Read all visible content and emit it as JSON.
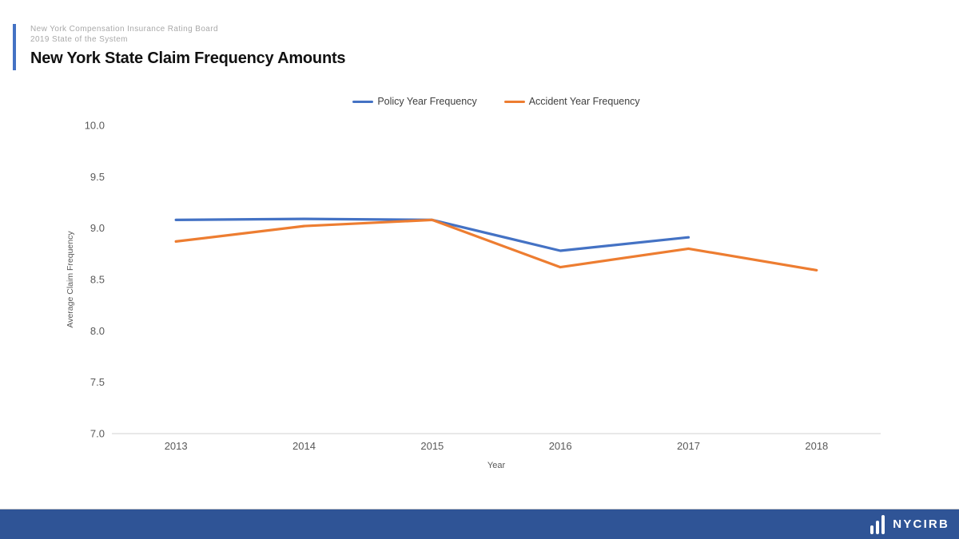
{
  "header": {
    "eyebrow_line1": "New York Compensation Insurance Rating Board",
    "eyebrow_line2": "2019 State of the System",
    "title": "New York State Claim Frequency Amounts",
    "accent_color": "#4472C4"
  },
  "chart_data": {
    "type": "line",
    "title": "New York State Claim Frequency Amounts",
    "xlabel": "Year",
    "ylabel": "Average Claim Frequency",
    "categories": [
      "2013",
      "2014",
      "2015",
      "2016",
      "2017",
      "2018"
    ],
    "series": [
      {
        "name": "Policy Year Frequency",
        "color": "#4472C4",
        "values": [
          9.08,
          9.09,
          9.08,
          8.78,
          8.91,
          null
        ]
      },
      {
        "name": "Accident Year Frequency",
        "color": "#ED7D31",
        "values": [
          8.87,
          9.02,
          9.08,
          8.62,
          8.8,
          8.59
        ]
      }
    ],
    "ylim": [
      7.0,
      10.0
    ],
    "yticks": [
      7.0,
      7.5,
      8.0,
      8.5,
      9.0,
      9.5,
      10.0
    ],
    "grid": false,
    "legend_position": "top",
    "axis_color": "#d9d9d9",
    "tick_color": "#595959"
  },
  "footer": {
    "brand": "NYCIRB",
    "bar_color": "#2F5496",
    "logo": "bar-chart-icon"
  }
}
